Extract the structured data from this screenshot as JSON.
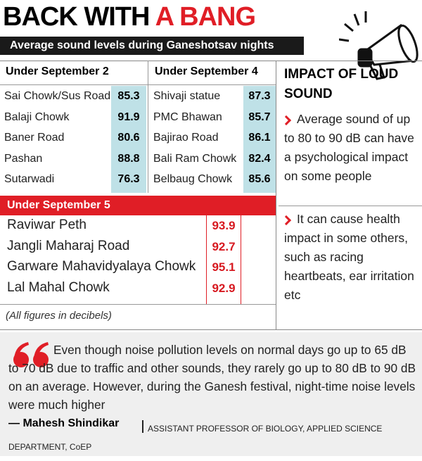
{
  "header": {
    "title": "BACK WITH",
    "title_highlight": "A BANG",
    "subtitle": "Average sound levels during Ganeshotsav nights"
  },
  "sections": [
    {
      "heading": "Under September 2",
      "rows": [
        {
          "place": "Sai Chowk/Sus Road",
          "level": 85.3
        },
        {
          "place": "Balaji Chowk",
          "level": 91.9
        },
        {
          "place": "Baner Road",
          "level": 80.6
        },
        {
          "place": "Pashan",
          "level": 88.8
        },
        {
          "place": "Sutarwadi",
          "level": 76.3
        }
      ]
    },
    {
      "heading": "Under September 4",
      "rows": [
        {
          "place": "Shivaji statue",
          "level": 87.3
        },
        {
          "place": "PMC Bhawan",
          "level": 85.7
        },
        {
          "place": "Bajirao Road",
          "level": 86.1
        },
        {
          "place": "Bali Ram Chowk",
          "level": 82.4
        },
        {
          "place": "Belbaug Chowk",
          "level": 85.6
        }
      ]
    },
    {
      "heading": "Under September 5",
      "rows": [
        {
          "place": "Raviwar Peth",
          "level": 93.9
        },
        {
          "place": "Jangli Maharaj Road",
          "level": 92.7
        },
        {
          "place": "Garware Mahavidyalaya Chowk",
          "level": 95.1
        },
        {
          "place": "Lal Mahal Chowk",
          "level": 92.9
        }
      ]
    }
  ],
  "note": "(All figures in decibels)",
  "impact": {
    "heading": "IMPACT OF LOUD SOUND",
    "points": [
      "Average sound of up to 80 to 90 dB can have a psychological impact on some people",
      "It can cause health impact in some others, such as racing heartbeats, ear irritation etc"
    ]
  },
  "quote": {
    "text": "Even though noise pollution levels on normal days go up to 65 dB to 70 dB due to traffic and other sounds, they rarely go up to 80 dB to 90 dB on an average. However, during the Ganesh festival, night-time noise levels were much higher",
    "author": "— Mahesh Shindikar",
    "affiliation": "ASSISTANT PROFESSOR OF BIOLOGY, APPLIED SCIENCE DEPARTMENT, CoEP"
  }
}
